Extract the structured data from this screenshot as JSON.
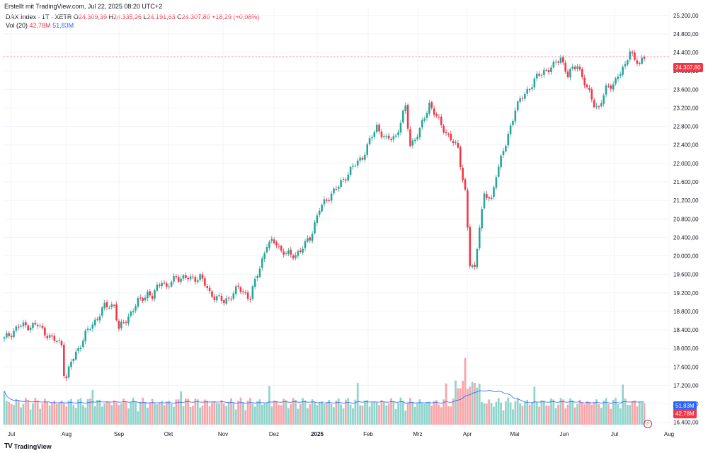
{
  "attribution": "Erstellt mit TradingView.com, Jul 22, 2025 08:20 UTC+2",
  "legend": {
    "symbol": "DAX Index · 1T · XETR",
    "open_label": "O",
    "open": "24.309,39",
    "high_label": "H",
    "high": "24.335,26",
    "low_label": "L",
    "low": "24.191,63",
    "close_label": "C",
    "close": "24.307,80",
    "change": "+18,29 (+0,08%)",
    "vol_label": "Vol (20)",
    "vol_value": "42,78M",
    "vol_ma": "51,83M"
  },
  "footer": {
    "logo": "TV",
    "brand": "TradingView"
  },
  "badges": {
    "last_price": "24.307,80",
    "vol_ma": "51,83M",
    "vol_value": "42,78M"
  },
  "colors": {
    "up": "#26a69a",
    "down": "#f23645",
    "vol_up": "#8fd3cb",
    "vol_down": "#f7a5a9",
    "ma": "#2962ff",
    "grid": "#f0f3fa",
    "price_line": "#f23645"
  },
  "chart_data": {
    "type": "candlestick",
    "title": "DAX Index · 1T · XETR",
    "y_ticks": [
      "25.200,00",
      "24.800,00",
      "24.400,00",
      "24.000,00",
      "23.600,00",
      "23.200,00",
      "22.800,00",
      "22.400,00",
      "22.000,00",
      "21.600,00",
      "21.200,00",
      "20.800,00",
      "20.400,00",
      "20.000,00",
      "19.600,00",
      "19.200,00",
      "18.800,00",
      "18.400,00",
      "18.000,00",
      "17.600,00",
      "17.200,00",
      "16.800,00",
      "16.400,00"
    ],
    "x_ticks": [
      "Jul",
      "Aug",
      "Sep",
      "Okt",
      "Nov",
      "Dez",
      "2025",
      "Feb",
      "Mrz",
      "Apr",
      "Mai",
      "Jun",
      "Jul",
      "Aug"
    ],
    "ylim": [
      16350,
      25350
    ],
    "last_price": 24307.8,
    "close_anchors": [
      [
        0,
        18200
      ],
      [
        6,
        18480
      ],
      [
        14,
        18500
      ],
      [
        20,
        18200
      ],
      [
        24,
        18100
      ],
      [
        25,
        17500
      ],
      [
        26,
        17350
      ],
      [
        28,
        17700
      ],
      [
        34,
        18300
      ],
      [
        38,
        18600
      ],
      [
        42,
        18900
      ],
      [
        46,
        18950
      ],
      [
        48,
        18400
      ],
      [
        52,
        18700
      ],
      [
        56,
        19000
      ],
      [
        60,
        19200
      ],
      [
        62,
        19100
      ],
      [
        66,
        19500
      ],
      [
        68,
        19300
      ],
      [
        72,
        19550
      ],
      [
        78,
        19500
      ],
      [
        82,
        19550
      ],
      [
        86,
        19200
      ],
      [
        92,
        19000
      ],
      [
        98,
        19300
      ],
      [
        103,
        19100
      ],
      [
        106,
        19600
      ],
      [
        110,
        20250
      ],
      [
        114,
        20300
      ],
      [
        116,
        20100
      ],
      [
        120,
        20000
      ],
      [
        124,
        20100
      ],
      [
        128,
        20400
      ],
      [
        132,
        21000
      ],
      [
        136,
        21300
      ],
      [
        140,
        21500
      ],
      [
        144,
        21800
      ],
      [
        150,
        22150
      ],
      [
        156,
        22800
      ],
      [
        160,
        22500
      ],
      [
        164,
        22600
      ],
      [
        168,
        23200
      ],
      [
        170,
        22400
      ],
      [
        174,
        22700
      ],
      [
        178,
        23300
      ],
      [
        182,
        22900
      ],
      [
        186,
        22600
      ],
      [
        190,
        22300
      ],
      [
        193,
        21400
      ],
      [
        195,
        19800
      ],
      [
        197,
        19700
      ],
      [
        199,
        20700
      ],
      [
        201,
        21300
      ],
      [
        204,
        21200
      ],
      [
        206,
        21800
      ],
      [
        210,
        22400
      ],
      [
        214,
        23200
      ],
      [
        218,
        23500
      ],
      [
        222,
        23800
      ],
      [
        226,
        24000
      ],
      [
        230,
        24100
      ],
      [
        233,
        24300
      ],
      [
        236,
        23900
      ],
      [
        240,
        24150
      ],
      [
        244,
        23600
      ],
      [
        247,
        23300
      ],
      [
        249,
        23200
      ],
      [
        252,
        23600
      ],
      [
        256,
        23800
      ],
      [
        260,
        24100
      ],
      [
        262,
        24500
      ],
      [
        264,
        24200
      ],
      [
        266,
        24150
      ],
      [
        268,
        24300
      ]
    ],
    "volume_units": "M",
    "volume_ylim": [
      0,
      260
    ]
  }
}
